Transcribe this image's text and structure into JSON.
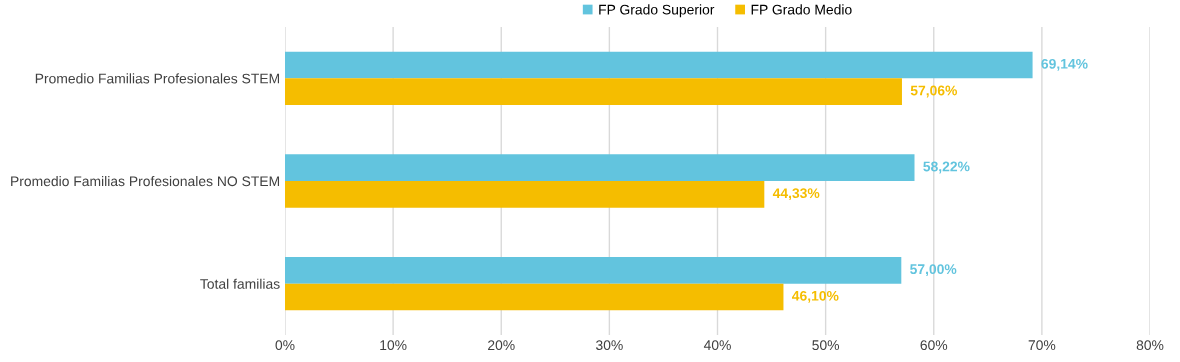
{
  "chart_data": {
    "type": "bar",
    "orientation": "horizontal",
    "categories": [
      "Promedio Familias Profesionales STEM",
      "Promedio Familias Profesionales NO STEM",
      "Total familias"
    ],
    "series": [
      {
        "name": "FP Grado Superior",
        "color": "#62c4de",
        "values": [
          69.14,
          58.22,
          57.0
        ],
        "value_labels": [
          "69,14%",
          "58,22%",
          "57,00%"
        ]
      },
      {
        "name": "FP Grado Medio",
        "color": "#f5bd00",
        "values": [
          57.06,
          44.33,
          46.1
        ],
        "value_labels": [
          "57,06%",
          "44,33%",
          "46,10%"
        ]
      }
    ],
    "xlim": [
      0,
      80
    ],
    "xticks": [
      {
        "value": 0,
        "label": "0%"
      },
      {
        "value": 10,
        "label": "10%"
      },
      {
        "value": 20,
        "label": "20%"
      },
      {
        "value": 30,
        "label": "30%"
      },
      {
        "value": 40,
        "label": "40%"
      },
      {
        "value": 50,
        "label": "50%"
      },
      {
        "value": 60,
        "label": "60%"
      },
      {
        "value": 70,
        "label": "70%"
      },
      {
        "value": 80,
        "label": "80%"
      }
    ],
    "grid": "x",
    "legend": "top"
  }
}
